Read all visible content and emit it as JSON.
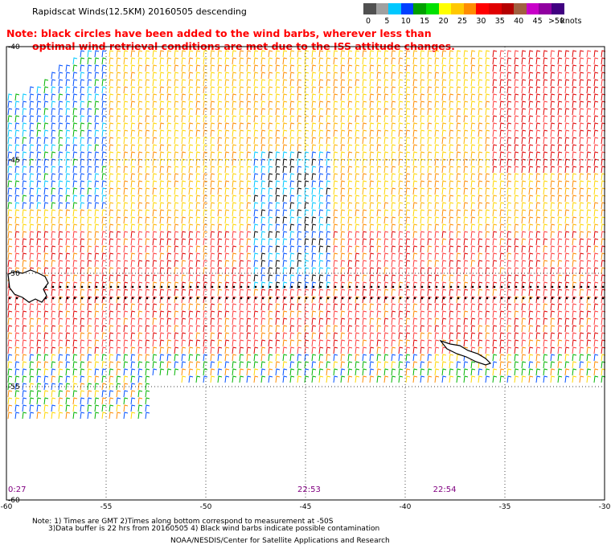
{
  "title": "Rapidscat Winds(12.5KM) 20160505 descending",
  "note": {
    "line1": "Note: black circles have been added to the wind barbs, wherever less than",
    "line2": "optimal wind retrieval conditions are met due to the ISS attitude changes."
  },
  "colorbar": {
    "ticks": [
      "0",
      "5",
      "10",
      "15",
      "20",
      "25",
      "30",
      "35",
      "40",
      "45",
      ">50"
    ],
    "units": "knots",
    "colors": [
      "#505050",
      "#a0a0a0",
      "#00c8ff",
      "#0040ff",
      "#00a000",
      "#00e000",
      "#ffff00",
      "#ffc800",
      "#ff8c00",
      "#ff0000",
      "#e00000",
      "#b40000",
      "#a06040",
      "#c800c8",
      "#9000a0",
      "#400080"
    ]
  },
  "map": {
    "lon_labels": [
      "-60",
      "-55",
      "-50",
      "-45",
      "-40",
      "-35",
      "-30"
    ],
    "lat_labels": [
      "-40",
      "-45",
      "-50",
      "-55",
      "-60"
    ],
    "lon_range": [
      -60,
      -30
    ],
    "lat_range": [
      -60,
      -40
    ],
    "time_labels": [
      "0:27",
      "22:53",
      "22:54"
    ],
    "time_label_lons": [
      -60,
      -45,
      -38.2
    ],
    "grid": "dotted"
  },
  "footer": {
    "line1": "Note: 1) Times are GMT 2)Times along bottom correspond to measurement at -50S",
    "line2": "3)Data buffer is 22 hrs from 20160505 4) Black wind barbs indicate possible contamination",
    "line3": "NOAA/NESDIS/Center for Satellite Applications and Research"
  }
}
